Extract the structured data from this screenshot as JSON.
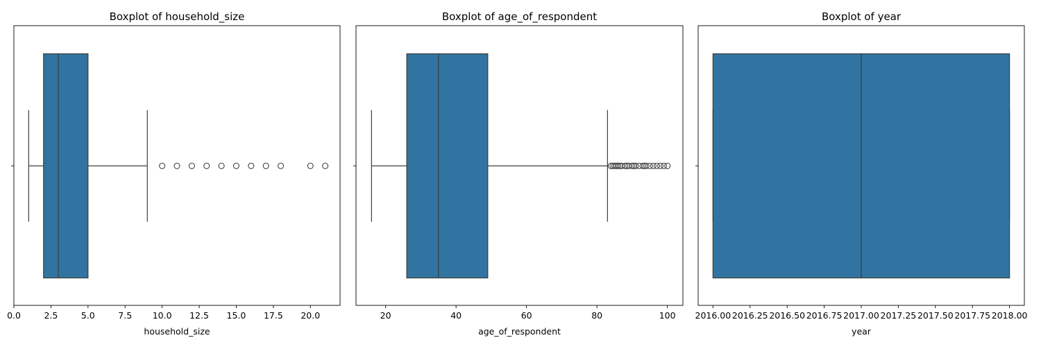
{
  "chart_data": [
    {
      "type": "boxplot",
      "orientation": "horizontal",
      "title": "Boxplot of household_size",
      "xlabel": "household_size",
      "xlim": [
        0,
        22
      ],
      "xticks": [
        0.0,
        2.5,
        5.0,
        7.5,
        10.0,
        12.5,
        15.0,
        17.5,
        20.0
      ],
      "xtick_labels": [
        "0.0",
        "2.5",
        "5.0",
        "7.5",
        "10.0",
        "12.5",
        "15.0",
        "17.5",
        "20.0"
      ],
      "box": {
        "whisker_low": 1,
        "q1": 2,
        "median": 3,
        "q3": 5,
        "whisker_high": 9
      },
      "outliers": [
        10,
        11,
        12,
        13,
        14,
        15,
        16,
        17,
        18,
        20,
        21
      ],
      "color": "#3274a1"
    },
    {
      "type": "boxplot",
      "orientation": "horizontal",
      "title": "Boxplot of age_of_respondent",
      "xlabel": "age_of_respondent",
      "xlim": [
        11.6,
        104.4
      ],
      "xticks": [
        20,
        40,
        60,
        80,
        100
      ],
      "xtick_labels": [
        "20",
        "40",
        "60",
        "80",
        "100"
      ],
      "box": {
        "whisker_low": 16,
        "q1": 26,
        "median": 35,
        "q3": 49,
        "whisker_high": 83
      },
      "outliers": [
        84,
        84.5,
        85,
        85.5,
        86,
        86.5,
        87,
        88,
        88.5,
        89,
        90,
        90.5,
        91,
        92,
        93,
        93.5,
        94,
        95,
        96,
        97,
        98,
        99,
        100
      ],
      "color": "#3274a1"
    },
    {
      "type": "boxplot",
      "orientation": "horizontal",
      "title": "Boxplot of year",
      "xlabel": "year",
      "xlim": [
        2015.9,
        2018.1
      ],
      "xticks": [
        2016.0,
        2016.25,
        2016.5,
        2016.75,
        2017.0,
        2017.25,
        2017.5,
        2017.75,
        2018.0
      ],
      "xtick_labels": [
        "2016.00",
        "2016.25",
        "2016.50",
        "2016.75",
        "2017.00",
        "2017.25",
        "2017.50",
        "2017.75",
        "2018.00"
      ],
      "box": {
        "whisker_low": 2016,
        "q1": 2016,
        "median": 2017,
        "q3": 2018,
        "whisker_high": 2018
      },
      "outliers": [],
      "color": "#3274a1"
    }
  ]
}
